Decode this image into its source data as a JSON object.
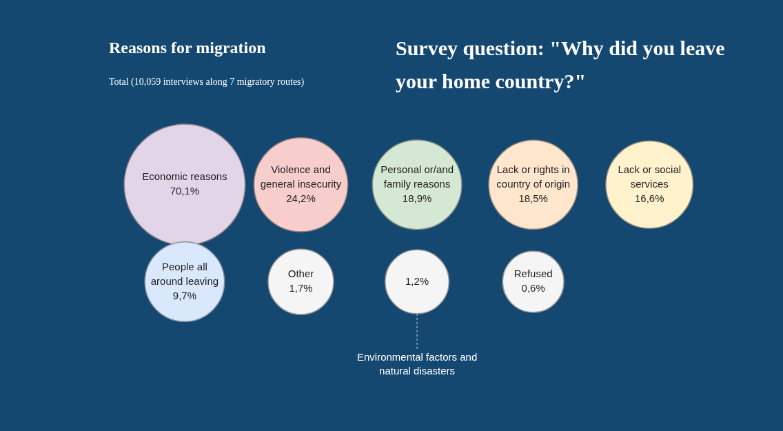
{
  "chart_data": {
    "type": "other",
    "title": "Reasons for migration",
    "subtitle": "Total (10,059 interviews along 7 migratory routes)",
    "annotations": [
      "Survey question: \"Why did you leave your home country?\""
    ],
    "categories": [
      "Economic reasons",
      "Violence and general insecurity",
      "Personal or/and family reasons",
      "Lack or rights in country of origin",
      "Lack or social services",
      "People all around leaving",
      "Other",
      "Environmental factors and natural disasters",
      "Refused"
    ],
    "values": [
      70.1,
      24.2,
      18.9,
      18.5,
      16.6,
      9.7,
      1.7,
      1.2,
      0.6
    ],
    "value_labels": [
      "70,1%",
      "24,2%",
      "18,9%",
      "18,5%",
      "16,6%",
      "9,7%",
      "1,7%",
      "1,2%",
      "0,6%"
    ],
    "colors": [
      "#e1d5e7",
      "#f8cecc",
      "#d5e8d4",
      "#ffe6cc",
      "#fff2cc",
      "#dae8fc",
      "#f5f5f5",
      "#f5f5f5",
      "#f5f5f5"
    ]
  }
}
